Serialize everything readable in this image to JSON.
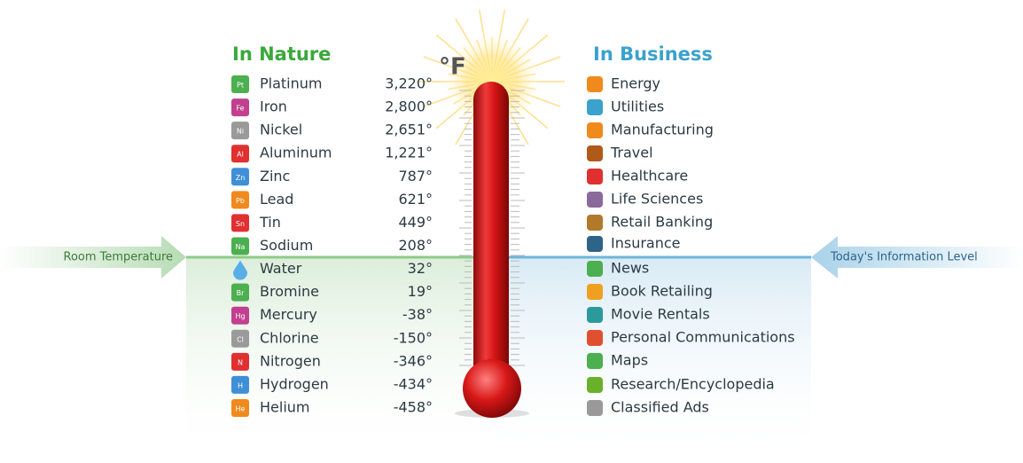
{
  "unit_label": "°F",
  "nature": {
    "title": "In Nature",
    "items": [
      {
        "name": "Platinum",
        "symbol": "Pt",
        "temp": "3,220°",
        "color": "#4caf50"
      },
      {
        "name": "Iron",
        "symbol": "Fe",
        "temp": "2,800°",
        "color": "#c2408f"
      },
      {
        "name": "Nickel",
        "symbol": "Ni",
        "temp": "2,651°",
        "color": "#9a9a9a"
      },
      {
        "name": "Aluminum",
        "symbol": "Al",
        "temp": "1,221°",
        "color": "#e03030"
      },
      {
        "name": "Zinc",
        "symbol": "Zn",
        "temp": "787°",
        "color": "#3f8fd8"
      },
      {
        "name": "Lead",
        "symbol": "Pb",
        "temp": "621°",
        "color": "#f08a1c"
      },
      {
        "name": "Tin",
        "symbol": "Sn",
        "temp": "449°",
        "color": "#e03030"
      },
      {
        "name": "Sodium",
        "symbol": "Na",
        "temp": "208°",
        "color": "#4caf50"
      },
      {
        "name": "Water",
        "temp": "32°",
        "color": "#5aaee8"
      },
      {
        "name": "Bromine",
        "symbol": "Br",
        "temp": "19°",
        "color": "#4caf50"
      },
      {
        "name": "Mercury",
        "symbol": "Hg",
        "temp": "-38°",
        "color": "#c2408f"
      },
      {
        "name": "Chlorine",
        "symbol": "Cl",
        "temp": "-150°",
        "color": "#9a9a9a"
      },
      {
        "name": "Nitrogen",
        "symbol": "N",
        "temp": "-346°",
        "color": "#e03030"
      },
      {
        "name": "Hydrogen",
        "symbol": "H",
        "temp": "-434°",
        "color": "#3f8fd8"
      },
      {
        "name": "Helium",
        "symbol": "He",
        "temp": "-458°",
        "color": "#f08a1c"
      }
    ]
  },
  "business": {
    "title": "In Business",
    "items": [
      "Energy",
      "Utilities",
      "Manufacturing",
      "Travel",
      "Healthcare",
      "Life Sciences",
      "Retail Banking",
      "Insurance",
      "News",
      "Book Retailing",
      "Movie Rentals",
      "Personal Communications",
      "Maps",
      "Research/Encyclopedia",
      "Classified Ads"
    ]
  },
  "left_marker": "Room Temperature",
  "right_marker": "Today's Information Level"
}
